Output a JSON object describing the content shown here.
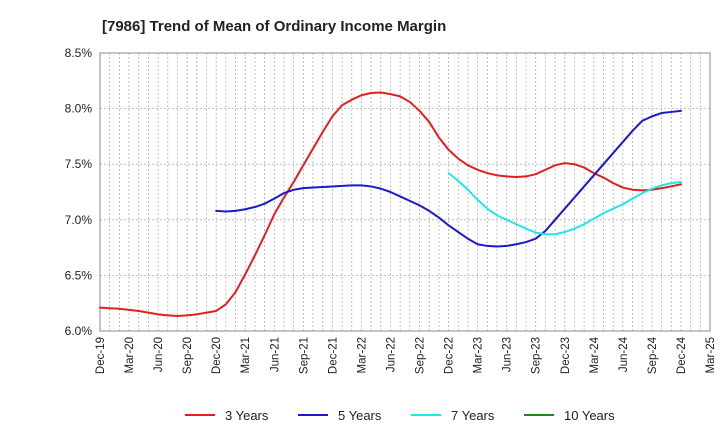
{
  "chart_data": {
    "type": "line",
    "title": "[7986]  Trend of Mean of Ordinary Income Margin",
    "xlabel": "",
    "ylabel": "",
    "ylim": [
      6.0,
      8.5
    ],
    "yticks": [
      "6.0%",
      "6.5%",
      "7.0%",
      "7.5%",
      "8.0%",
      "8.5%"
    ],
    "ytick_values": [
      6.0,
      6.5,
      7.0,
      7.5,
      8.0,
      8.5
    ],
    "categories": [
      "Dec-19",
      "Mar-20",
      "Jun-20",
      "Sep-20",
      "Dec-20",
      "Mar-21",
      "Jun-21",
      "Sep-21",
      "Dec-21",
      "Mar-22",
      "Jun-22",
      "Sep-22",
      "Dec-22",
      "Mar-23",
      "Jun-23",
      "Sep-23",
      "Dec-23",
      "Mar-24",
      "Jun-24",
      "Sep-24",
      "Dec-24",
      "Mar-25"
    ],
    "x_months_range": [
      "2019-12",
      "2025-03"
    ],
    "grid": true,
    "legend_position": "bottom",
    "series": [
      {
        "name": "3 Years",
        "color": "#e02020",
        "points": [
          [
            "2019-12",
            6.21
          ],
          [
            "2020-01",
            6.205
          ],
          [
            "2020-02",
            6.2
          ],
          [
            "2020-03",
            6.19
          ],
          [
            "2020-04",
            6.18
          ],
          [
            "2020-05",
            6.165
          ],
          [
            "2020-06",
            6.15
          ],
          [
            "2020-07",
            6.14
          ],
          [
            "2020-08",
            6.135
          ],
          [
            "2020-09",
            6.14
          ],
          [
            "2020-10",
            6.15
          ],
          [
            "2020-11",
            6.165
          ],
          [
            "2020-12",
            6.18
          ],
          [
            "2021-01",
            6.24
          ],
          [
            "2021-02",
            6.35
          ],
          [
            "2021-03",
            6.51
          ],
          [
            "2021-04",
            6.68
          ],
          [
            "2021-05",
            6.86
          ],
          [
            "2021-06",
            7.05
          ],
          [
            "2021-07",
            7.2
          ],
          [
            "2021-08",
            7.34
          ],
          [
            "2021-09",
            7.49
          ],
          [
            "2021-10",
            7.64
          ],
          [
            "2021-11",
            7.79
          ],
          [
            "2021-12",
            7.93
          ],
          [
            "2022-01",
            8.03
          ],
          [
            "2022-02",
            8.08
          ],
          [
            "2022-03",
            8.12
          ],
          [
            "2022-04",
            8.14
          ],
          [
            "2022-05",
            8.145
          ],
          [
            "2022-06",
            8.13
          ],
          [
            "2022-07",
            8.11
          ],
          [
            "2022-08",
            8.06
          ],
          [
            "2022-09",
            7.98
          ],
          [
            "2022-10",
            7.88
          ],
          [
            "2022-11",
            7.74
          ],
          [
            "2022-12",
            7.63
          ],
          [
            "2023-01",
            7.55
          ],
          [
            "2023-02",
            7.49
          ],
          [
            "2023-03",
            7.45
          ],
          [
            "2023-04",
            7.42
          ],
          [
            "2023-05",
            7.4
          ],
          [
            "2023-06",
            7.39
          ],
          [
            "2023-07",
            7.385
          ],
          [
            "2023-08",
            7.39
          ],
          [
            "2023-09",
            7.41
          ],
          [
            "2023-10",
            7.45
          ],
          [
            "2023-11",
            7.49
          ],
          [
            "2023-12",
            7.51
          ],
          [
            "2024-01",
            7.5
          ],
          [
            "2024-02",
            7.47
          ],
          [
            "2024-03",
            7.42
          ],
          [
            "2024-04",
            7.38
          ],
          [
            "2024-05",
            7.33
          ],
          [
            "2024-06",
            7.29
          ],
          [
            "2024-07",
            7.27
          ],
          [
            "2024-08",
            7.265
          ],
          [
            "2024-09",
            7.27
          ],
          [
            "2024-10",
            7.285
          ],
          [
            "2024-11",
            7.3
          ],
          [
            "2024-12",
            7.32
          ]
        ]
      },
      {
        "name": "5 Years",
        "color": "#1a1acc",
        "points": [
          [
            "2020-12",
            7.08
          ],
          [
            "2021-01",
            7.075
          ],
          [
            "2021-02",
            7.08
          ],
          [
            "2021-03",
            7.095
          ],
          [
            "2021-04",
            7.115
          ],
          [
            "2021-05",
            7.145
          ],
          [
            "2021-06",
            7.19
          ],
          [
            "2021-07",
            7.24
          ],
          [
            "2021-08",
            7.27
          ],
          [
            "2021-09",
            7.285
          ],
          [
            "2021-10",
            7.29
          ],
          [
            "2021-11",
            7.295
          ],
          [
            "2021-12",
            7.3
          ],
          [
            "2022-01",
            7.305
          ],
          [
            "2022-02",
            7.31
          ],
          [
            "2022-03",
            7.31
          ],
          [
            "2022-04",
            7.3
          ],
          [
            "2022-05",
            7.28
          ],
          [
            "2022-06",
            7.25
          ],
          [
            "2022-07",
            7.21
          ],
          [
            "2022-08",
            7.17
          ],
          [
            "2022-09",
            7.13
          ],
          [
            "2022-10",
            7.08
          ],
          [
            "2022-11",
            7.02
          ],
          [
            "2022-12",
            6.95
          ],
          [
            "2023-01",
            6.89
          ],
          [
            "2023-02",
            6.83
          ],
          [
            "2023-03",
            6.78
          ],
          [
            "2023-04",
            6.765
          ],
          [
            "2023-05",
            6.76
          ],
          [
            "2023-06",
            6.765
          ],
          [
            "2023-07",
            6.78
          ],
          [
            "2023-08",
            6.8
          ],
          [
            "2023-09",
            6.83
          ],
          [
            "2023-10",
            6.9
          ],
          [
            "2023-11",
            7.0
          ],
          [
            "2023-12",
            7.1
          ],
          [
            "2024-01",
            7.2
          ],
          [
            "2024-02",
            7.3
          ],
          [
            "2024-03",
            7.4
          ],
          [
            "2024-04",
            7.5
          ],
          [
            "2024-05",
            7.6
          ],
          [
            "2024-06",
            7.7
          ],
          [
            "2024-07",
            7.8
          ],
          [
            "2024-08",
            7.89
          ],
          [
            "2024-09",
            7.93
          ],
          [
            "2024-10",
            7.96
          ],
          [
            "2024-11",
            7.97
          ],
          [
            "2024-12",
            7.98
          ]
        ]
      },
      {
        "name": "7 Years",
        "color": "#22e6e6",
        "points": [
          [
            "2022-12",
            7.42
          ],
          [
            "2023-01",
            7.35
          ],
          [
            "2023-02",
            7.27
          ],
          [
            "2023-03",
            7.18
          ],
          [
            "2023-04",
            7.1
          ],
          [
            "2023-05",
            7.04
          ],
          [
            "2023-06",
            7.0
          ],
          [
            "2023-07",
            6.96
          ],
          [
            "2023-08",
            6.92
          ],
          [
            "2023-09",
            6.885
          ],
          [
            "2023-10",
            6.87
          ],
          [
            "2023-11",
            6.87
          ],
          [
            "2023-12",
            6.89
          ],
          [
            "2024-01",
            6.92
          ],
          [
            "2024-02",
            6.96
          ],
          [
            "2024-03",
            7.01
          ],
          [
            "2024-04",
            7.06
          ],
          [
            "2024-05",
            7.1
          ],
          [
            "2024-06",
            7.14
          ],
          [
            "2024-07",
            7.19
          ],
          [
            "2024-08",
            7.24
          ],
          [
            "2024-09",
            7.28
          ],
          [
            "2024-10",
            7.31
          ],
          [
            "2024-11",
            7.33
          ],
          [
            "2024-12",
            7.34
          ]
        ]
      },
      {
        "name": "10 Years",
        "color": "#1a8a1a",
        "points": []
      }
    ]
  }
}
